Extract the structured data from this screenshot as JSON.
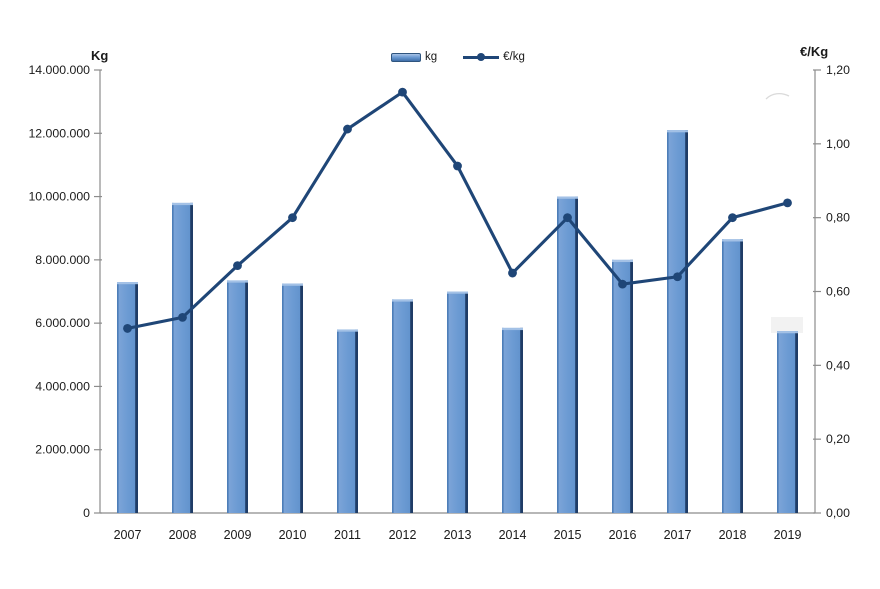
{
  "chart_data": {
    "type": "bar",
    "title": "",
    "categories": [
      "2007",
      "2008",
      "2009",
      "2010",
      "2011",
      "2012",
      "2013",
      "2014",
      "2015",
      "2016",
      "2017",
      "2018",
      "2019"
    ],
    "series": [
      {
        "name": "kg",
        "type": "bar",
        "axis": "left",
        "values": [
          7300000,
          9800000,
          7350000,
          7250000,
          5800000,
          6750000,
          7000000,
          5850000,
          10000000,
          8000000,
          12100000,
          8650000,
          5750000
        ]
      },
      {
        "name": "€/kg",
        "type": "line",
        "axis": "right",
        "values": [
          0.5,
          0.53,
          0.67,
          0.8,
          1.04,
          1.14,
          0.94,
          0.65,
          0.8,
          0.62,
          0.64,
          0.8,
          0.84
        ]
      }
    ],
    "left_axis": {
      "label": "Kg",
      "min": 0,
      "max": 14000000,
      "step": 2000000,
      "tick_labels": [
        "14.000.000",
        "12.000.000",
        "10.000.000",
        "8.000.000",
        "6.000.000",
        "4.000.000",
        "2.000.000",
        "0"
      ]
    },
    "right_axis": {
      "label": "€/Kg",
      "min": 0,
      "max": 1.2,
      "step": 0.2,
      "tick_labels": [
        "1,20",
        "1,00",
        "0,80",
        "0,60",
        "0,40",
        "0,20",
        "0,00"
      ]
    },
    "legend_position": "top-center",
    "grid": false
  },
  "colors": {
    "bar_fill_light": "#7fa6d9",
    "bar_fill_mid": "#6c9bd3",
    "bar_fill_dark": "#5f90cb",
    "bar_edge_dark": "#1f3c66",
    "bar_edge_left": "#4477b3",
    "bar_top_highlight": "#a3c1e6",
    "line": "#1f4677",
    "marker": "#1f4677",
    "axis": "#8c8c8c",
    "text": "#1a1a1a"
  }
}
